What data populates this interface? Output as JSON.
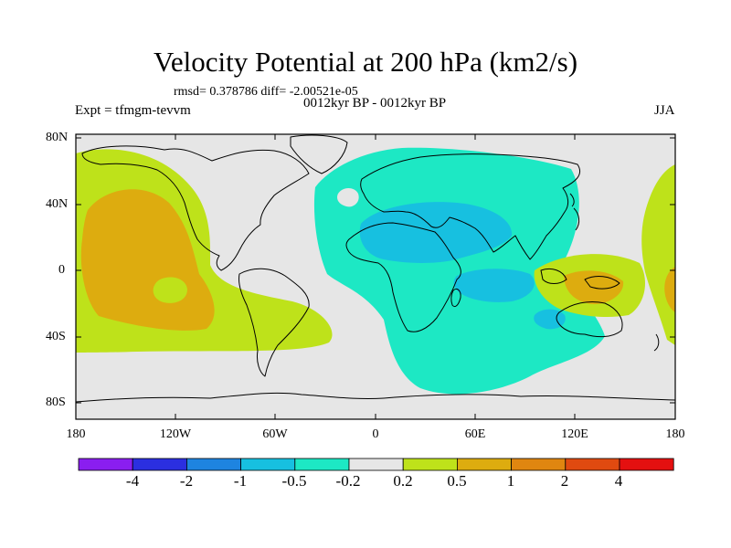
{
  "title": "Velocity Potential at 200 hPa (km2/s)",
  "stats": "rmsd= 0.378786 diff= -2.00521e-05",
  "subtitle": "0012kyr BP - 0012kyr BP",
  "experiment": "Expt = tfmgm-tevvm",
  "season": "JJA",
  "lat_labels": [
    "80N",
    "40N",
    "0",
    "40S",
    "80S"
  ],
  "lon_labels": [
    "180",
    "120W",
    "60W",
    "0",
    "60E",
    "120E",
    "180"
  ],
  "colorbar": {
    "colors": [
      "#8a1ef0",
      "#2b2fe0",
      "#1e84e0",
      "#17c0e0",
      "#1de8c4",
      "#e6e6e6",
      "#bee21a",
      "#ddac0f",
      "#e08610",
      "#e04a10",
      "#e41010"
    ],
    "labels": [
      "-4",
      "-2",
      "-1",
      "-0.5",
      "-0.2",
      "0.2",
      "0.5",
      "1",
      "2",
      "4"
    ]
  }
}
